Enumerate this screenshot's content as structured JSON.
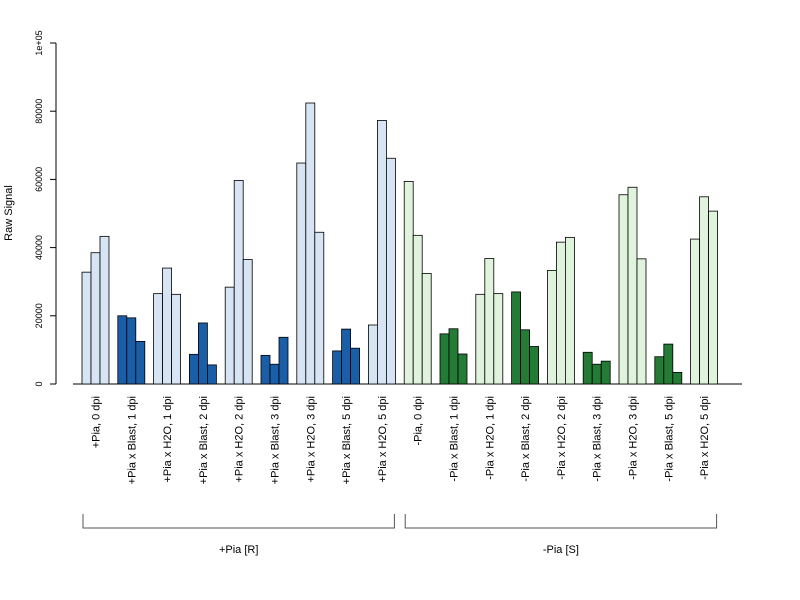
{
  "chart_data": {
    "type": "bar",
    "ylabel": "Raw Signal",
    "ylim": [
      0,
      100000
    ],
    "yticks": [
      0,
      20000,
      40000,
      60000,
      80000,
      100000
    ],
    "ytick_labels": [
      "0",
      "20000",
      "40000",
      "60000",
      "80000",
      "1e+05"
    ],
    "grid": false,
    "legend": "none",
    "colors": {
      "pia_light": "#d6e4f3",
      "pia_dark": "#1b5ea8",
      "nopia_light": "#e0f3dc",
      "nopia_dark": "#237b35",
      "bar_border": "#000000"
    },
    "categories": [
      {
        "label": "+Pia, 0 dpi",
        "tone": "pia_light",
        "values": [
          32800,
          38500,
          43300
        ]
      },
      {
        "label": "+Pia x Blast, 1 dpi",
        "tone": "pia_dark",
        "values": [
          20000,
          19400,
          12500
        ]
      },
      {
        "label": "+Pia x H2O, 1 dpi",
        "tone": "pia_light",
        "values": [
          26500,
          34000,
          26300
        ]
      },
      {
        "label": "+Pia x Blast, 2 dpi",
        "tone": "pia_dark",
        "values": [
          8700,
          17900,
          5600
        ]
      },
      {
        "label": "+Pia x H2O, 2 dpi",
        "tone": "pia_light",
        "values": [
          28400,
          59700,
          36500
        ]
      },
      {
        "label": "+Pia x Blast, 3 dpi",
        "tone": "pia_dark",
        "values": [
          8400,
          5800,
          13700
        ]
      },
      {
        "label": "+Pia x H2O, 3 dpi",
        "tone": "pia_light",
        "values": [
          64800,
          82400,
          44500
        ]
      },
      {
        "label": "+Pia x Blast, 5 dpi",
        "tone": "pia_dark",
        "values": [
          9700,
          16100,
          10500
        ]
      },
      {
        "label": "+Pia x H2O, 5 dpi",
        "tone": "pia_light",
        "values": [
          17300,
          77300,
          66200
        ]
      },
      {
        "label": "-Pia, 0 dpi",
        "tone": "nopia_light",
        "values": [
          59400,
          43600,
          32400
        ]
      },
      {
        "label": "-Pia x Blast, 1 dpi",
        "tone": "nopia_dark",
        "values": [
          14700,
          16200,
          8800
        ]
      },
      {
        "label": "-Pia x H2O, 1 dpi",
        "tone": "nopia_light",
        "values": [
          26300,
          36800,
          26500
        ]
      },
      {
        "label": "-Pia x Blast, 2 dpi",
        "tone": "nopia_dark",
        "values": [
          27000,
          15900,
          11000
        ]
      },
      {
        "label": "-Pia x H2O, 2 dpi",
        "tone": "nopia_light",
        "values": [
          33300,
          41600,
          43000
        ]
      },
      {
        "label": "-Pia x Blast, 3 dpi",
        "tone": "nopia_dark",
        "values": [
          9300,
          5800,
          6700
        ]
      },
      {
        "label": "-Pia x H2O, 3 dpi",
        "tone": "nopia_light",
        "values": [
          55500,
          57700,
          36700
        ]
      },
      {
        "label": "-Pia x Blast, 5 dpi",
        "tone": "nopia_dark",
        "values": [
          8000,
          11700,
          3400
        ]
      },
      {
        "label": "-Pia x H2O, 5 dpi",
        "tone": "nopia_light",
        "values": [
          42500,
          54900,
          50700
        ]
      }
    ],
    "groups": [
      {
        "label": "+Pia [R]",
        "from": 0,
        "to": 8
      },
      {
        "label": "-Pia [S]",
        "from": 9,
        "to": 17
      }
    ]
  }
}
